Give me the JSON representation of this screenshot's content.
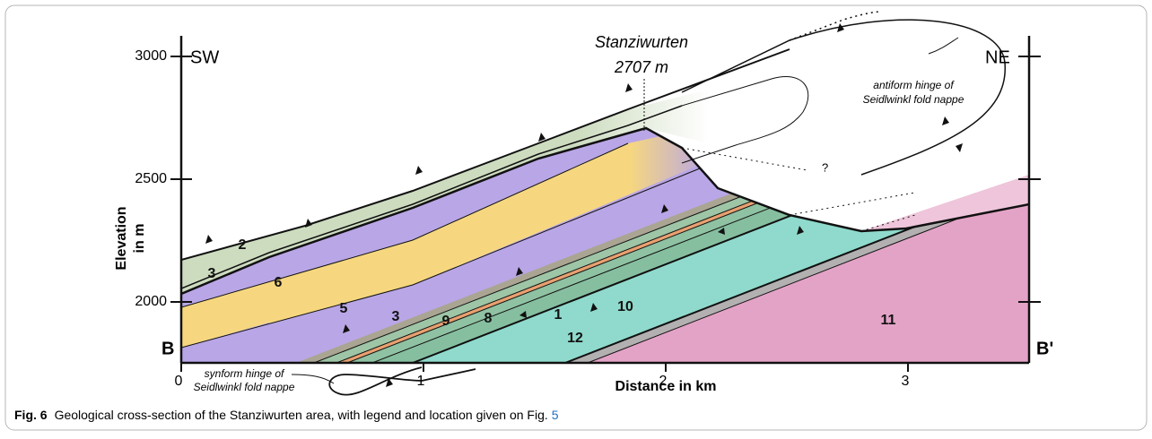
{
  "axes": {
    "y_title": [
      "Elevation",
      "in m"
    ],
    "y_ticks": [
      3000,
      2500,
      2000
    ],
    "x_title": "Distance in km",
    "x_ticks": [
      0,
      1,
      2,
      3
    ]
  },
  "ends": {
    "sw": "SW",
    "ne": "NE",
    "b": "B",
    "b_prime": "B'"
  },
  "peak": {
    "name": "Stanziwurten",
    "elevation": "2707 m"
  },
  "annotations": {
    "antiform": [
      "antiform hinge of",
      "Seidlwinkl fold nappe"
    ],
    "synform": [
      "synform hinge of",
      "Seidlwinkl fold nappe"
    ],
    "question": "?"
  },
  "units": [
    "2",
    "3",
    "6",
    "5",
    "3",
    "9",
    "8",
    "1",
    "10",
    "12",
    "11"
  ],
  "caption": {
    "label": "Fig. 6",
    "text": "Geological cross-section of the Stanziwurten area, with legend and location given on Fig.",
    "ref": "5"
  }
}
